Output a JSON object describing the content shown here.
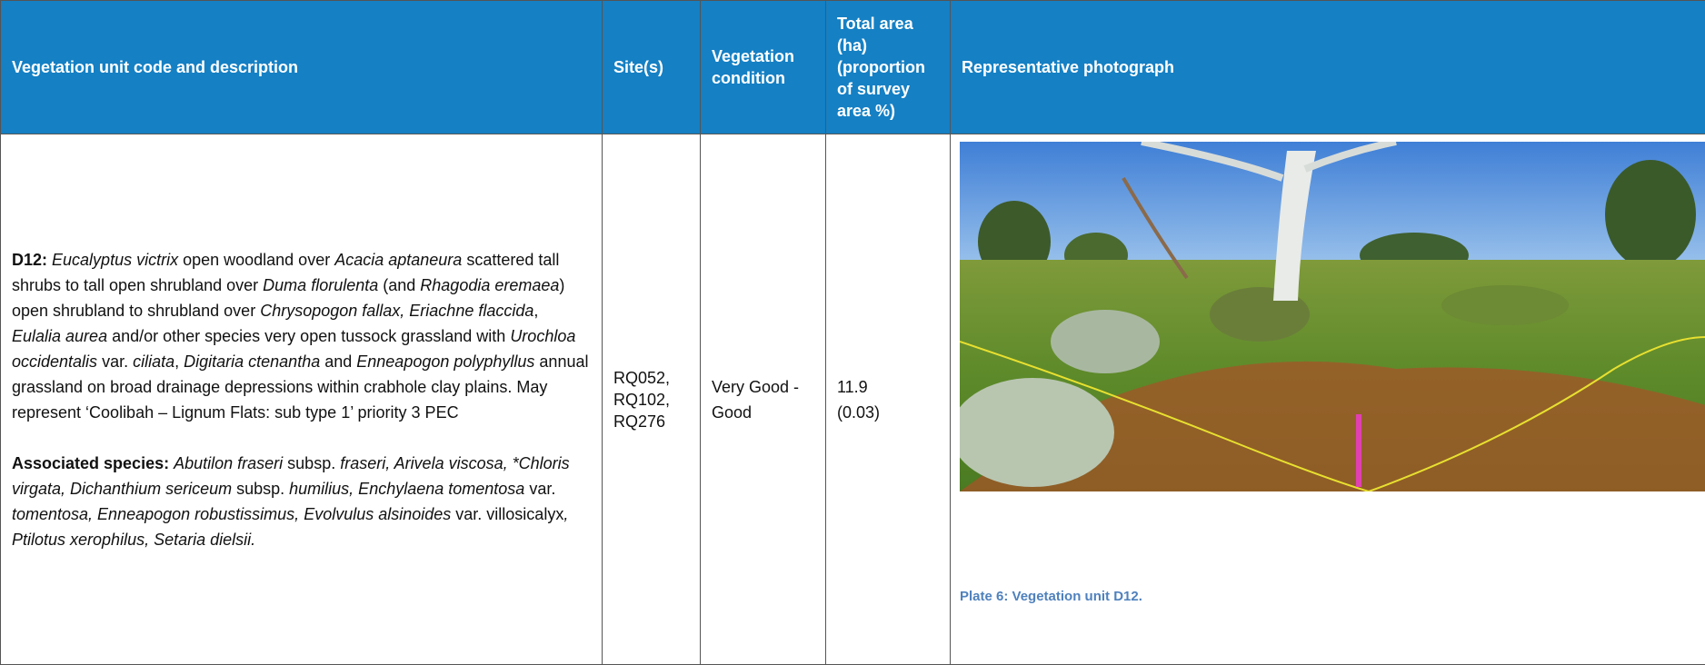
{
  "table": {
    "headers": [
      "Vegetation unit code and description",
      "Site(s)",
      "Vegetation condition",
      "Total area (ha) (proportion of survey area %)",
      "Representative photograph"
    ],
    "rows": [
      {
        "description": [
          [
            "D12:",
            "Eucalyptus victrix",
            " open woodland over ",
            "Acacia aptaneura",
            " scattered tall shrubs to tall open shrubland over ",
            "Duma florulenta",
            " (and ",
            "Rhagodia eremaea",
            ") open shrubland to shrubland over ",
            "Chrysopogon fallax, Eriachne flaccida",
            ", ",
            "Eulalia aurea",
            " and/or other species very open tussock grassland with ",
            "Urochloa occidentalis",
            " var. ",
            "ciliata",
            ", ",
            "Digitaria ctenantha",
            " and ",
            "Enneapogon polyphyllus",
            " annual grassland on broad drainage depressions within crabhole clay plains. May represent ‘Coolibah – Lignum Flats: sub type 1’ priority 3 PEC"
          ],
          [
            "Associated species:",
            "Abutilon fraseri",
            " subsp. ",
            "fraseri, Arivela viscosa, *Chloris virgata, Dichanthium sericeum",
            " subsp. ",
            "humilius, Enchylaena tomentosa",
            " var. ",
            "tomentosa, Enneapogon robustissimus, Evolvulus alsinoides",
            " var. villosicalyx",
            ", Ptilotus xerophilus, Setaria dielsii."
          ]
        ],
        "sites": [
          "RQ052,",
          "RQ102,",
          "RQ276"
        ],
        "condition": "Very Good - Good",
        "area": "11.9",
        "proportion": "(0.03)",
        "photo_caption": "Plate 6: Vegetation unit D12."
      }
    ]
  }
}
